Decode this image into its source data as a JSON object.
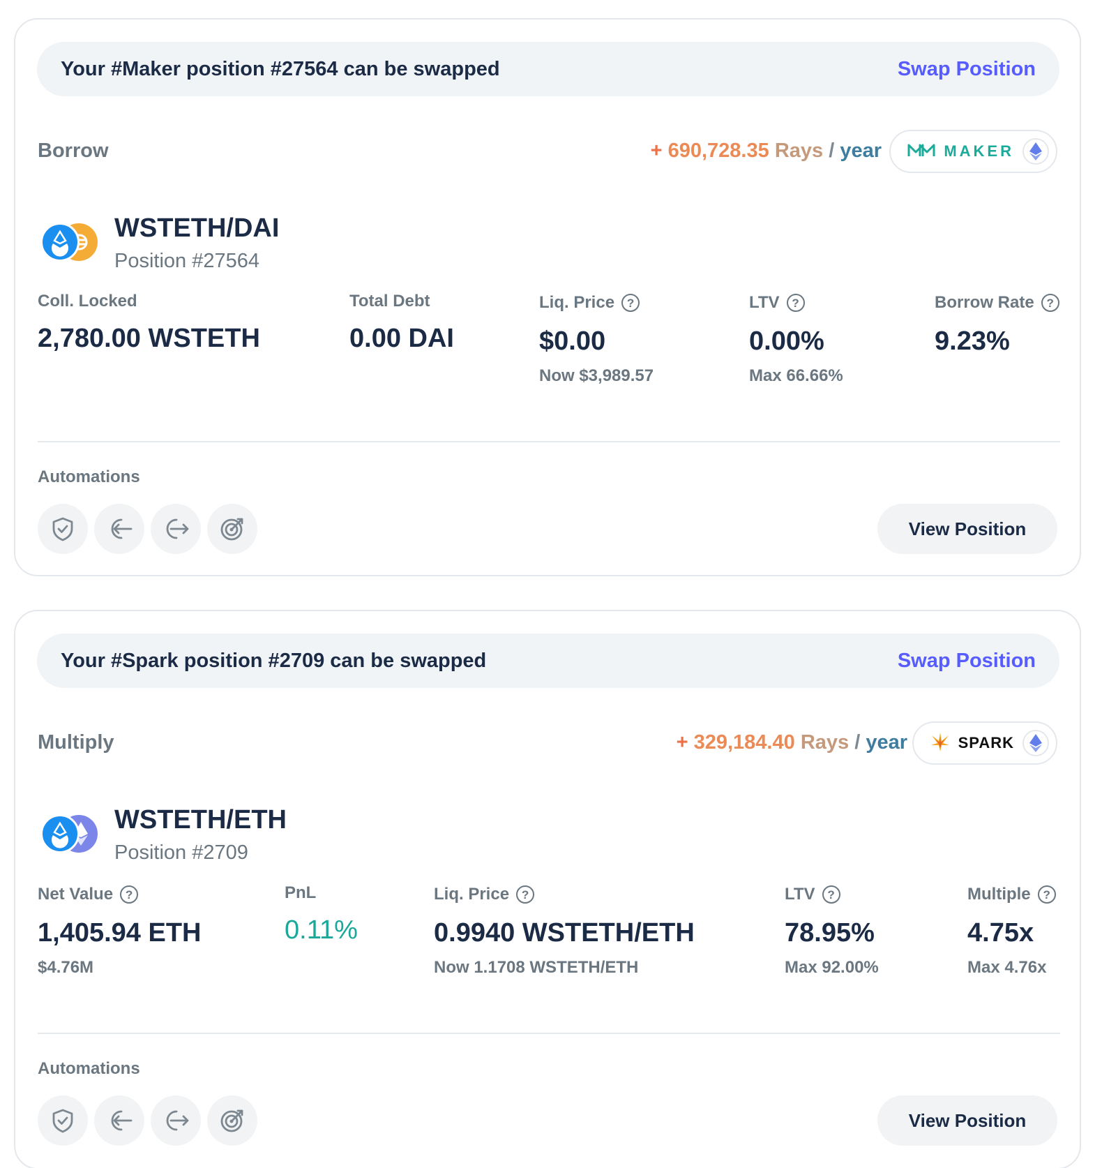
{
  "cards": [
    {
      "banner": {
        "text": "Your #Maker position #27564 can be swapped",
        "action": "Swap Position"
      },
      "type": "Borrow",
      "rays": {
        "plus": "+",
        "amount": "690,728.35",
        "unit": "Rays",
        "slash": "/",
        "per": "year"
      },
      "protocol": {
        "name": "MAKER",
        "icon": "maker-logo",
        "network_icon": "ethereum-icon"
      },
      "pair": "WSTETH/DAI",
      "position": "Position #27564",
      "tokens": [
        "wsteth-icon",
        "dai-icon"
      ],
      "stats": [
        {
          "label": "Coll. Locked",
          "value": "2,780.00 WSTETH",
          "sub": "",
          "help": false
        },
        {
          "label": "Total Debt",
          "value": "0.00 DAI",
          "sub": "",
          "help": false
        },
        {
          "label": "Liq. Price",
          "value": "$0.00",
          "sub": "Now $3,989.57",
          "help": true
        },
        {
          "label": "LTV",
          "value": "0.00%",
          "sub": "Max 66.66%",
          "help": true
        },
        {
          "label": "Borrow Rate",
          "value": "9.23%",
          "sub": "",
          "help": true
        }
      ],
      "automations_label": "Automations",
      "automation_icons": [
        "shield-check-icon",
        "arrow-left-in-icon",
        "arrow-right-out-icon",
        "target-icon"
      ],
      "view_button": "View Position"
    },
    {
      "banner": {
        "text": "Your #Spark position #2709 can be swapped",
        "action": "Swap Position"
      },
      "type": "Multiply",
      "rays": {
        "plus": "+",
        "amount": "329,184.40",
        "unit": "Rays",
        "slash": "/",
        "per": "year"
      },
      "protocol": {
        "name": "SPARK",
        "icon": "spark-logo",
        "network_icon": "ethereum-icon"
      },
      "pair": "WSTETH/ETH",
      "position": "Position #2709",
      "tokens": [
        "wsteth-icon",
        "eth-icon"
      ],
      "stats": [
        {
          "label": "Net Value",
          "value": "1,405.94 ETH",
          "sub": "$4.76M",
          "help": true
        },
        {
          "label": "PnL",
          "value": "0.11%",
          "sub": "",
          "help": false,
          "color": "#19a89a"
        },
        {
          "label": "Liq. Price",
          "value": "0.9940 WSTETH/ETH",
          "sub": "Now 1.1708 WSTETH/ETH",
          "help": true
        },
        {
          "label": "LTV",
          "value": "78.95%",
          "sub": "Max 92.00%",
          "help": true
        },
        {
          "label": "Multiple",
          "value": "4.75x",
          "sub": "Max 4.76x",
          "help": true
        }
      ],
      "automations_label": "Automations",
      "automation_icons": [
        "shield-check-icon",
        "arrow-left-in-icon",
        "arrow-right-out-icon",
        "target-icon"
      ],
      "view_button": "View Position"
    }
  ],
  "colors": {
    "accent": "#575cfe",
    "text": "#1c2b45",
    "muted": "#6b7780",
    "rays": "#ec8a55",
    "positive": "#19a89a",
    "maker": "#1aab9b"
  }
}
